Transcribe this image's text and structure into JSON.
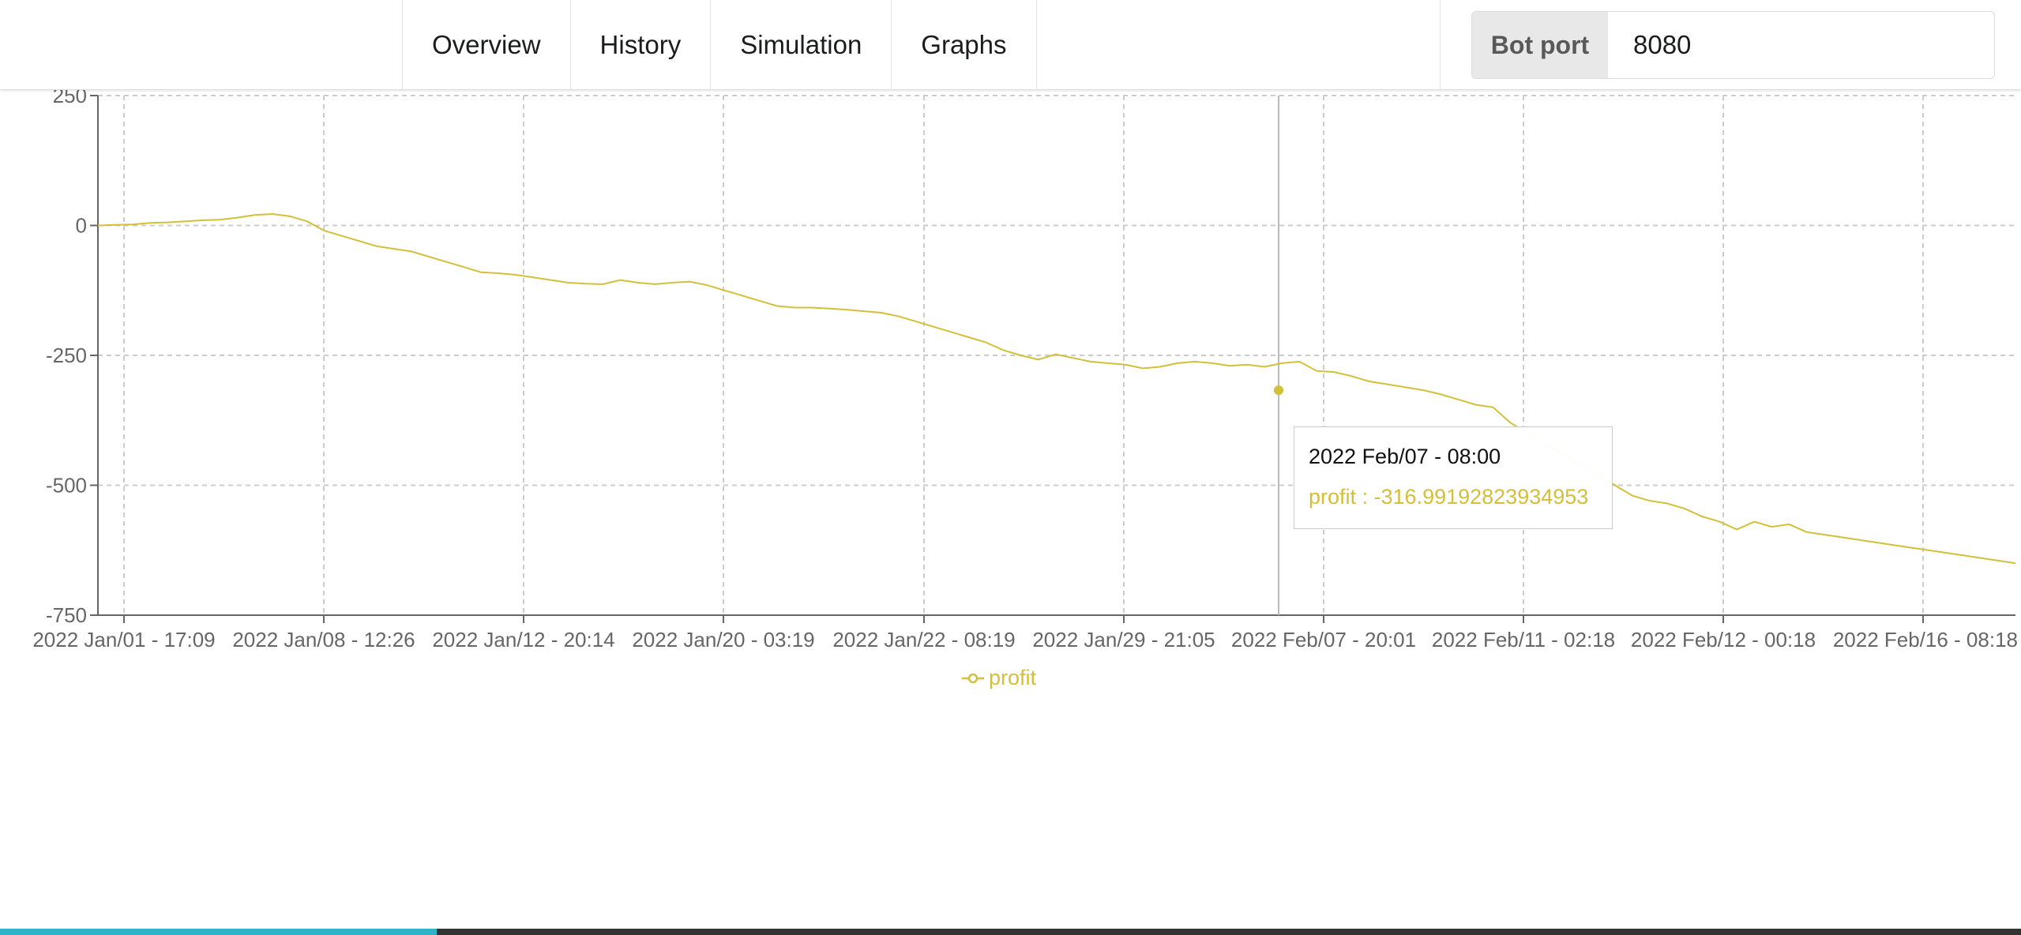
{
  "nav": {
    "items": [
      {
        "label": "Overview"
      },
      {
        "label": "History"
      },
      {
        "label": "Simulation"
      },
      {
        "label": "Graphs"
      }
    ]
  },
  "bot_port": {
    "label": "Bot port",
    "value": "8080"
  },
  "tooltip": {
    "date": "2022 Feb/07 - 08:00",
    "value_text": "profit : -316.99192823934953"
  },
  "legend": {
    "label": "profit"
  },
  "colors": {
    "series": "#d4bf3a",
    "grid": "#cccccc",
    "axis": "#666666"
  },
  "chart_data": {
    "type": "line",
    "xlabel": "",
    "ylabel": "",
    "ylim": [
      -750,
      250
    ],
    "y_ticks": [
      250,
      0,
      -250,
      -500,
      -750
    ],
    "y_tick_labels": [
      "250",
      "0",
      "-250",
      "-500",
      "-750"
    ],
    "x_tick_labels": [
      "2022 Jan/01 - 17:09",
      "2022 Jan/08 - 12:26",
      "2022 Jan/12 - 20:14",
      "2022 Jan/20 - 03:19",
      "2022 Jan/22 - 08:19",
      "2022 Jan/29 - 21:05",
      "2022 Feb/07 - 20:01",
      "2022 Feb/11 - 02:18",
      "2022 Feb/12 - 00:18",
      "2022 Feb/16 - 08:18"
    ],
    "grid": true,
    "legend_position": "bottom-center",
    "highlight": {
      "label": "2022 Feb/07 - 08:00",
      "value": -316.99192823934953
    },
    "series": [
      {
        "name": "profit",
        "values": [
          0,
          1,
          2,
          5,
          6,
          8,
          10,
          11,
          15,
          20,
          22,
          18,
          8,
          -10,
          -20,
          -30,
          -40,
          -45,
          -50,
          -60,
          -70,
          -80,
          -90,
          -92,
          -95,
          -100,
          -105,
          -110,
          -112,
          -113,
          -105,
          -110,
          -113,
          -110,
          -108,
          -115,
          -125,
          -135,
          -145,
          -155,
          -158,
          -158,
          -160,
          -162,
          -165,
          -168,
          -175,
          -185,
          -195,
          -205,
          -215,
          -225,
          -240,
          -250,
          -258,
          -248,
          -255,
          -262,
          -265,
          -268,
          -275,
          -272,
          -265,
          -262,
          -265,
          -270,
          -268,
          -272,
          -265,
          -262,
          -280,
          -282,
          -290,
          -300,
          -317,
          -325,
          -335,
          -345,
          -350,
          -380,
          -400,
          -420,
          -440,
          -460,
          -480,
          -500,
          -520,
          -530,
          -535,
          -545,
          -560,
          -570,
          -585,
          -570,
          -580,
          -575,
          -590,
          -595,
          -600,
          -605,
          -610,
          -615,
          -620,
          -625,
          -630,
          -635,
          -640,
          -645,
          -650
        ],
        "x_positions": [
          0,
          0.008,
          0.016,
          0.024,
          0.032,
          0.04,
          0.048,
          0.056,
          0.064,
          0.072,
          0.08,
          0.088,
          0.096,
          0.104,
          0.112,
          0.12,
          0.128,
          0.136,
          0.144,
          0.152,
          0.16,
          0.168,
          0.176,
          0.184,
          0.192,
          0.2,
          0.208,
          0.216,
          0.224,
          0.232,
          0.24,
          0.248,
          0.256,
          0.264,
          0.272,
          0.28,
          0.288,
          0.296,
          0.304,
          0.312,
          0.32,
          0.328,
          0.336,
          0.344,
          0.352,
          0.36,
          0.368,
          0.376,
          0.384,
          0.392,
          0.4,
          0.408,
          0.416,
          0.424,
          0.432,
          0.44,
          0.448,
          0.456,
          0.464,
          0.472,
          0.48,
          0.488,
          0.496,
          0.504,
          0.512,
          0.52,
          0.528,
          0.536,
          0.544,
          0.552,
          0.56,
          0.568,
          0.576,
          0.584,
          0.609,
          0.617,
          0.625,
          0.633,
          0.641,
          0.649,
          0.657,
          0.665,
          0.673,
          0.681,
          0.689,
          0.697,
          0.705,
          0.713,
          0.721,
          0.729,
          0.737,
          0.745,
          0.753,
          0.761,
          0.769,
          0.777,
          0.785,
          0.793,
          0.801,
          0.809,
          0.817,
          0.825,
          0.833,
          0.841,
          0.849,
          0.857,
          0.865,
          0.873,
          0.881
        ]
      }
    ]
  }
}
